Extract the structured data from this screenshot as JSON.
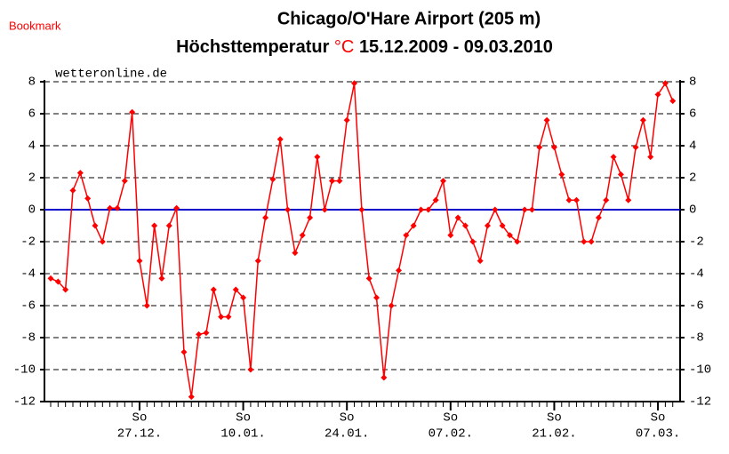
{
  "bookmark": "Bookmark",
  "chart_data": {
    "type": "line",
    "title": "Chicago/O'Hare Airport (205 m)",
    "subtitle_prefix": "Höchsttemperatur",
    "unit": "°C",
    "subtitle_period": "15.12.2009 - 09.03.2010",
    "source": "wetteronline.de",
    "weekday": "So",
    "categories": [
      null,
      null,
      null,
      null,
      null,
      null,
      null,
      null,
      null,
      null,
      null,
      null,
      "27.12.",
      null,
      null,
      null,
      null,
      null,
      null,
      null,
      null,
      null,
      null,
      null,
      null,
      null,
      "10.01.",
      null,
      null,
      null,
      null,
      null,
      null,
      null,
      null,
      null,
      null,
      null,
      null,
      null,
      "24.01.",
      null,
      null,
      null,
      null,
      null,
      null,
      null,
      null,
      null,
      null,
      null,
      null,
      null,
      "07.02.",
      null,
      null,
      null,
      null,
      null,
      null,
      null,
      null,
      null,
      null,
      null,
      null,
      null,
      "21.02.",
      null,
      null,
      null,
      null,
      null,
      null,
      null,
      null,
      null,
      null,
      null,
      null,
      null,
      "07.03.",
      null,
      null
    ],
    "series": [
      {
        "name": "Höchsttemperatur",
        "color": "#ff0000",
        "values": [
          -4.3,
          -4.5,
          -5.0,
          1.2,
          2.3,
          0.7,
          -1.0,
          -2.0,
          0.1,
          0.1,
          1.8,
          6.1,
          -3.2,
          -6.0,
          -1.0,
          -4.3,
          -1.0,
          0.1,
          -8.9,
          -11.7,
          -7.8,
          -7.7,
          -5.0,
          -6.7,
          -6.7,
          -5.0,
          -5.5,
          -10.0,
          -3.2,
          -0.5,
          1.9,
          4.4,
          0.0,
          -2.7,
          -1.6,
          -0.5,
          3.3,
          0.0,
          1.8,
          1.8,
          5.6,
          7.9,
          0.0,
          -4.3,
          -5.5,
          -10.5,
          -6.0,
          -3.8,
          -1.6,
          -1.0,
          0.0,
          0.0,
          0.6,
          1.8,
          -1.6,
          -0.5,
          -1.0,
          -2.0,
          -3.2,
          -1.0,
          0.0,
          -1.0,
          -1.6,
          -2.0,
          0.0,
          0.0,
          3.9,
          5.6,
          3.9,
          2.2,
          0.6,
          0.6,
          -2.0,
          -2.0,
          -0.5,
          0.6,
          3.3,
          2.2,
          0.6,
          3.9,
          5.6,
          3.3,
          7.2,
          7.9,
          6.8
        ]
      }
    ],
    "ylim": [
      -12,
      8
    ],
    "yticks": [
      -12,
      -10,
      -8,
      -6,
      -4,
      -2,
      0,
      2,
      4,
      6,
      8
    ],
    "zero_line_color": "#0000cc",
    "grid": true
  }
}
